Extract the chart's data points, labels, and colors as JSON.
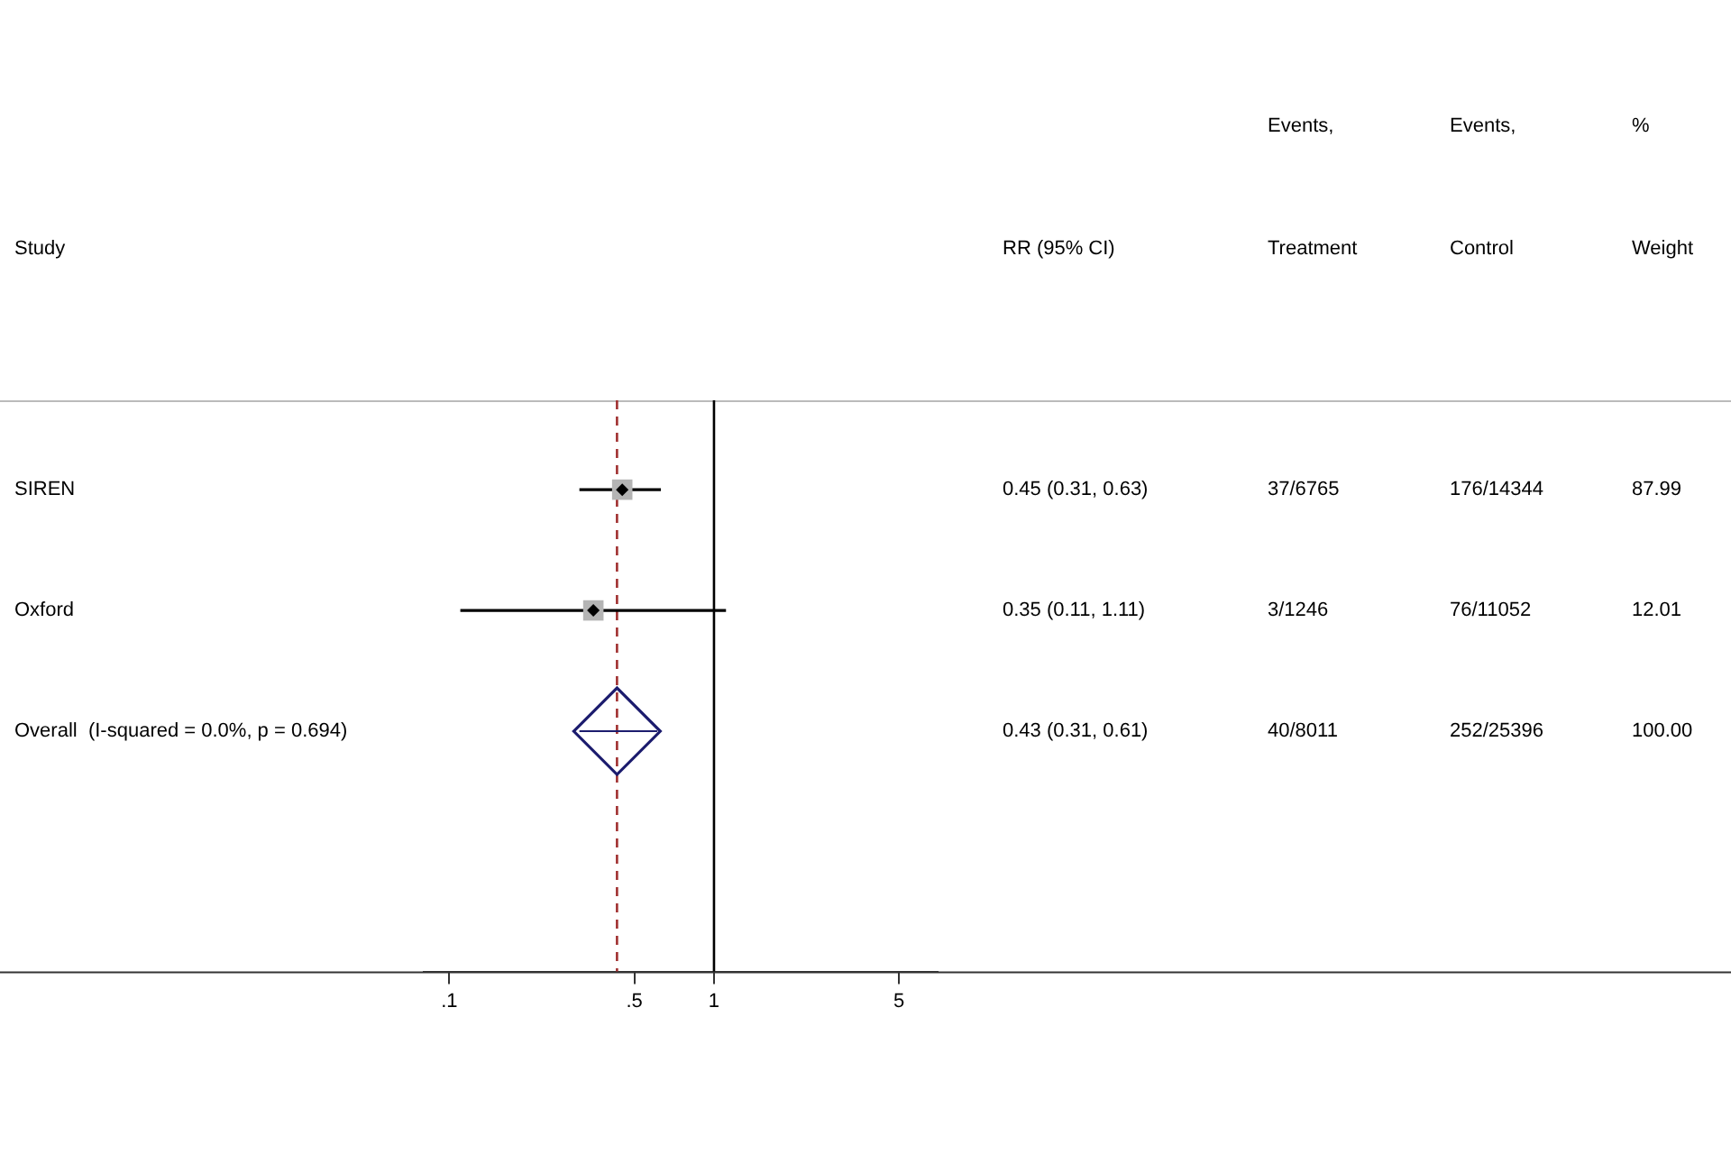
{
  "chart_data": {
    "type": "scatter",
    "orientation": "horizontal",
    "categories": [
      "SIREN",
      "Oxford",
      "Overall  (I-squared = 0.0%, p = 0.694)"
    ],
    "series": [
      {
        "type": "scatter",
        "marker": "square",
        "color": "#b4b4b4",
        "values": [
          0.45,
          0.35,
          null
        ],
        "errors": [
          [
            0.31,
            0.63
          ],
          [
            0.11,
            1.11
          ],
          null
        ]
      },
      {
        "type": "scatter",
        "marker": "diamond",
        "color": "#1c1c6e",
        "values": [
          null,
          null,
          0.43
        ],
        "errors": [
          null,
          null,
          [
            0.31,
            0.61
          ]
        ]
      }
    ],
    "log": "x",
    "xlim": [
      0.08,
      7
    ],
    "xticks": [
      {
        "value": 0.1,
        "label": ".1"
      },
      {
        "value": 0.5,
        "label": ".5"
      },
      1,
      5
    ],
    "ref_lines": [
      {
        "axis": "x",
        "value": 1,
        "color": "#000000",
        "line_style": "solid"
      },
      {
        "axis": "x",
        "value": 0.43,
        "color": "#a03030",
        "line_style": "dashed"
      }
    ],
    "annotations": [
      "Study",
      "RR (95% CI)",
      "Events,\nTreatment",
      "Events,\nControl",
      "%\nWeight",
      "0.45 (0.31, 0.63)",
      "37/6765",
      "176/14344",
      "87.99",
      "0.35 (0.11, 1.11)",
      "3/1246",
      "76/11052",
      "12.01",
      "0.43 (0.31, 0.61)",
      "40/8011",
      "252/25396",
      "100.00"
    ],
    "grid": false,
    "legend": false
  }
}
